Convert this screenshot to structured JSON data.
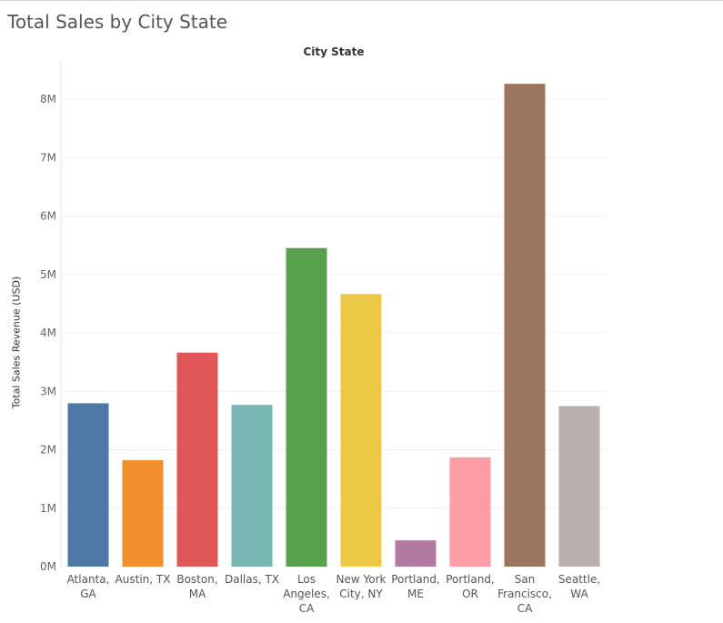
{
  "title": "Total Sales by City State",
  "chart_data": {
    "type": "bar",
    "header": "City State",
    "ylabel": "Total Sales Revenue (USD)",
    "xlabel": "",
    "ylim": [
      0,
      8500000
    ],
    "yticks": [
      {
        "value": 0,
        "label": "0M"
      },
      {
        "value": 1000000,
        "label": "1M"
      },
      {
        "value": 2000000,
        "label": "2M"
      },
      {
        "value": 3000000,
        "label": "3M"
      },
      {
        "value": 4000000,
        "label": "4M"
      },
      {
        "value": 5000000,
        "label": "5M"
      },
      {
        "value": 6000000,
        "label": "6M"
      },
      {
        "value": 7000000,
        "label": "7M"
      },
      {
        "value": 8000000,
        "label": "8M"
      }
    ],
    "grid": true,
    "categories": [
      "Atlanta, GA",
      "Austin, TX",
      "Boston, MA",
      "Dallas, TX",
      "Los Angeles, CA",
      "New York City, NY",
      "Portland, ME",
      "Portland, OR",
      "San Francisco, CA",
      "Seattle, WA"
    ],
    "category_label_lines": [
      [
        "Atlanta,",
        "GA"
      ],
      [
        "Austin, TX"
      ],
      [
        "Boston,",
        "MA"
      ],
      [
        "Dallas, TX"
      ],
      [
        "Los",
        "Angeles,",
        "CA"
      ],
      [
        "New York",
        "City, NY"
      ],
      [
        "Portland,",
        "ME"
      ],
      [
        "Portland,",
        "OR"
      ],
      [
        "San",
        "Francisco,",
        "CA"
      ],
      [
        "Seattle,",
        "WA"
      ]
    ],
    "values": [
      2795000,
      1820000,
      3662000,
      2767000,
      5452000,
      4665000,
      449000,
      1870000,
      8262000,
      2747000
    ],
    "colors": [
      "#4e79a7",
      "#f28e2b",
      "#e15759",
      "#76b7b2",
      "#59a14f",
      "#edc948",
      "#b07aa1",
      "#ff9da7",
      "#9c755f",
      "#bab0ac"
    ]
  }
}
